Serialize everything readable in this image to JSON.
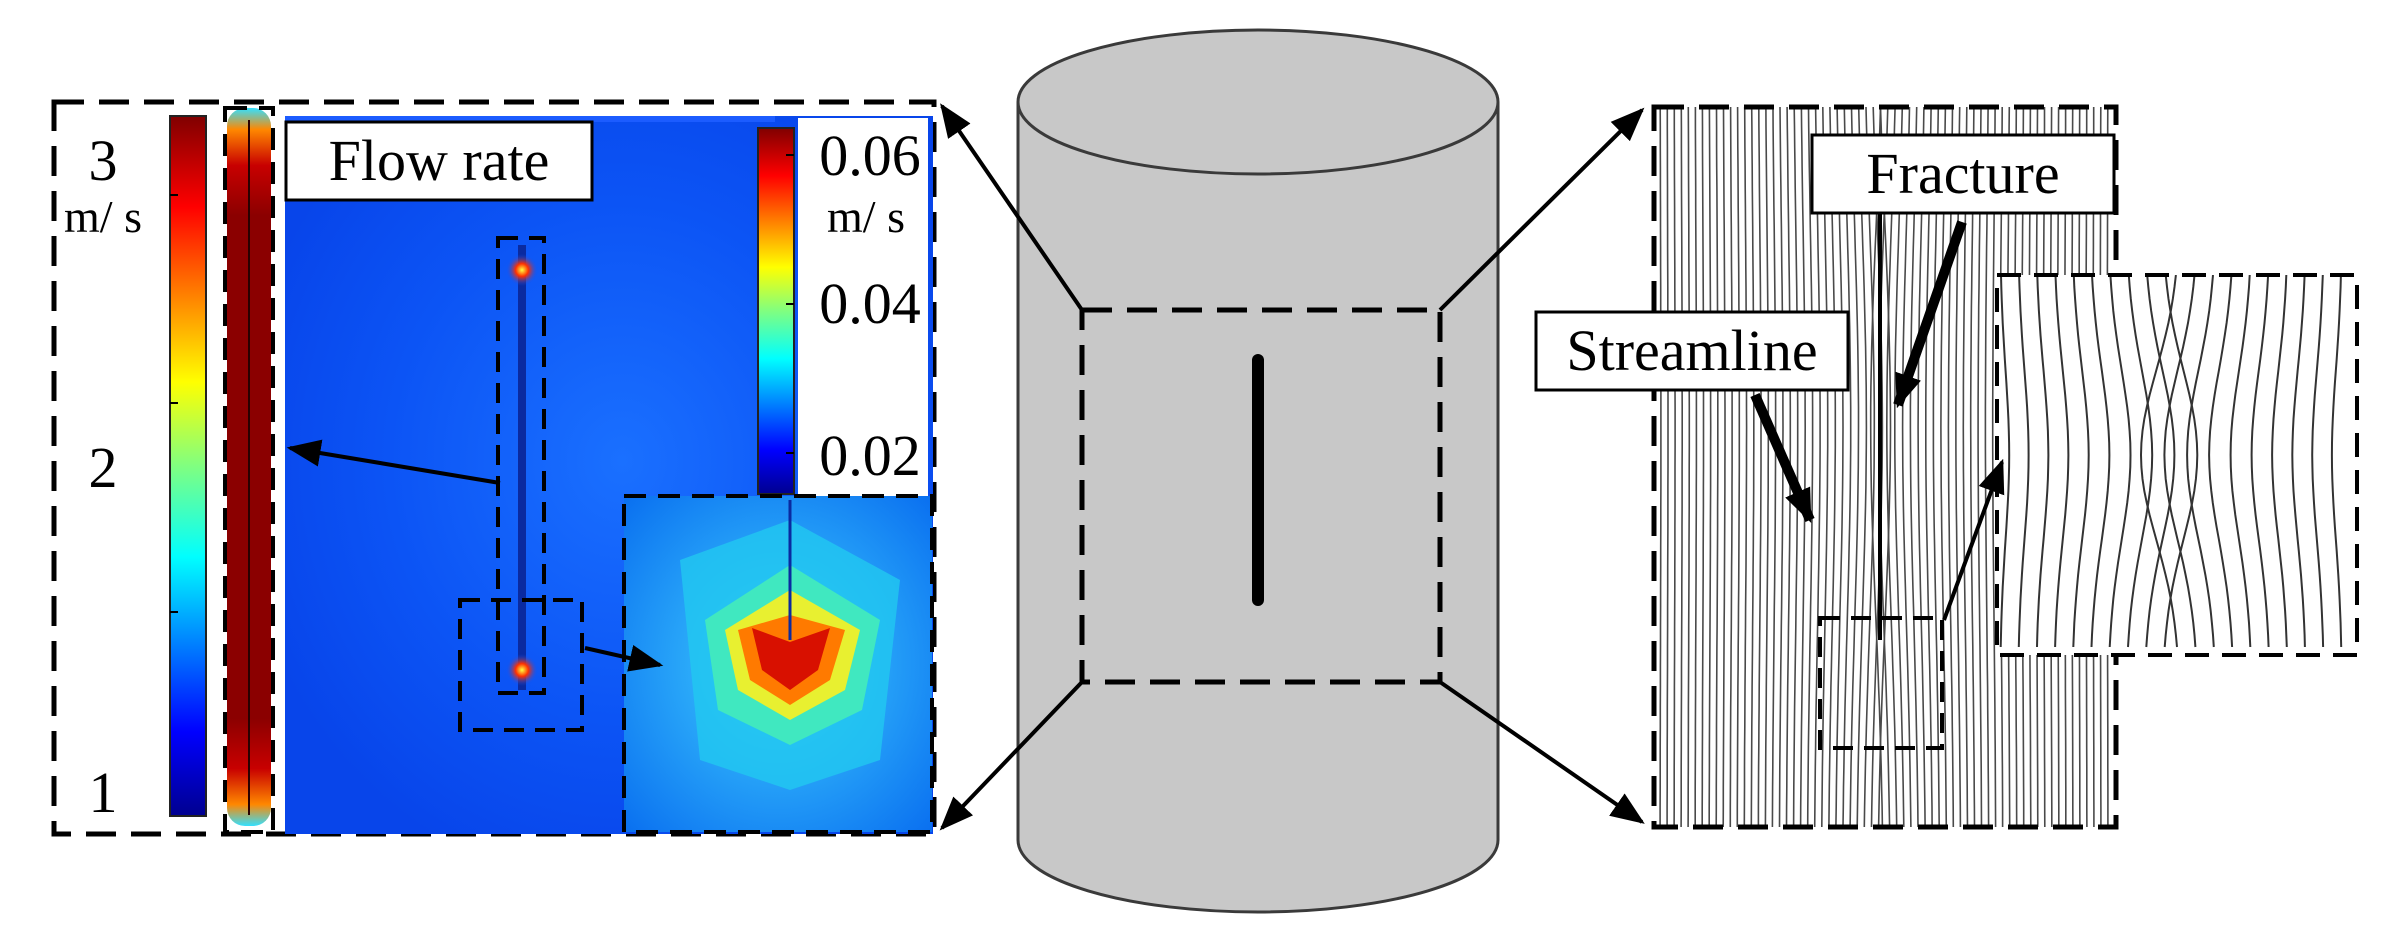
{
  "left_panel": {
    "colorbar_large": {
      "ticks": [
        "3",
        "2",
        "1"
      ],
      "unit": "m/ s"
    },
    "colorbar_small": {
      "ticks": [
        "0.06",
        "0.04",
        "0.02"
      ],
      "unit": "m/ s"
    },
    "label": "Flow rate"
  },
  "right_panel": {
    "fracture_label": "Fracture",
    "streamline_label": "Streamline"
  },
  "colors": {
    "background_field": "#0a4cf0",
    "cylinder_fill": "#c8c8c8",
    "cylinder_stroke": "#3a3a3a",
    "frame": "#000000"
  }
}
